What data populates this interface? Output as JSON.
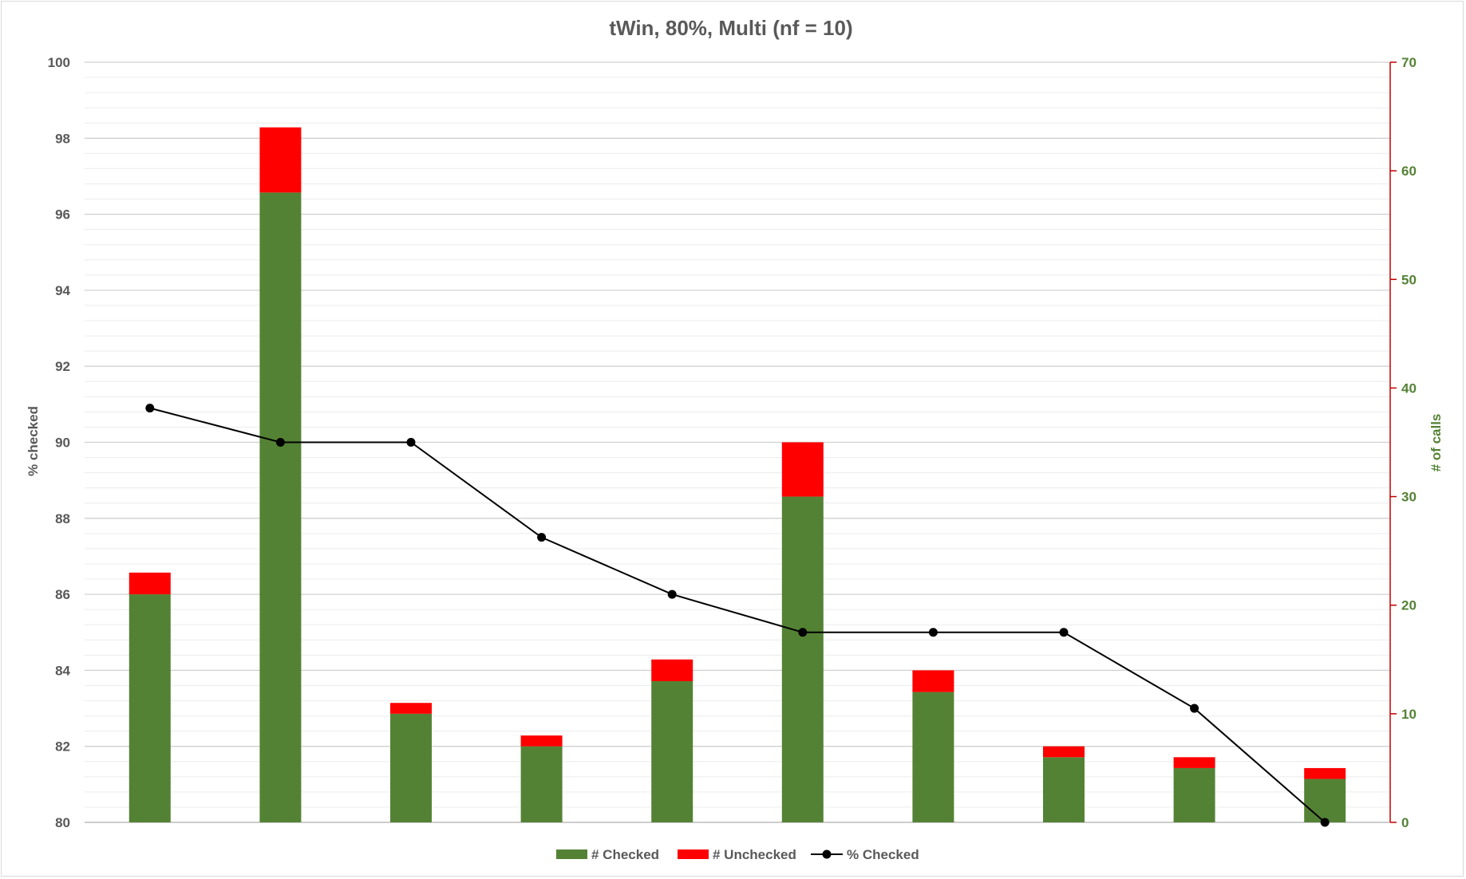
{
  "chart_data": {
    "type": "bar",
    "title": "tWin, 80%, Multi (nf = 10)",
    "categories": [
      "",
      "",
      "",
      "",
      "",
      "",
      "",
      "",
      "",
      ""
    ],
    "series": [
      {
        "name": "# Checked",
        "kind": "stacked-bar",
        "axis": "right",
        "color": "#548235",
        "values": [
          21,
          58,
          10,
          7,
          13,
          30,
          12,
          6,
          5,
          4
        ]
      },
      {
        "name": "# Unchecked",
        "kind": "stacked-bar",
        "axis": "right",
        "color": "#ff0000",
        "values": [
          2,
          6,
          1,
          1,
          2,
          5,
          2,
          1,
          1,
          1
        ]
      },
      {
        "name": "% Checked",
        "kind": "line",
        "axis": "left",
        "color": "#000000",
        "values": [
          90.9,
          90.0,
          90.0,
          87.5,
          86.0,
          85.0,
          85.0,
          85.0,
          83.0,
          80.0
        ]
      }
    ],
    "left_axis": {
      "label": "% checked",
      "min": 80,
      "max": 100,
      "step": 2,
      "ticks": [
        "80",
        "82",
        "84",
        "86",
        "88",
        "90",
        "92",
        "94",
        "96",
        "98",
        "100"
      ]
    },
    "right_axis": {
      "label": "# of calls",
      "min": 0,
      "max": 70,
      "step": 10,
      "color": "#548235",
      "line_color": "#c00000",
      "ticks": [
        "0",
        "10",
        "20",
        "30",
        "40",
        "50",
        "60",
        "70"
      ]
    },
    "grid": true,
    "legend": {
      "position": "bottom"
    }
  }
}
